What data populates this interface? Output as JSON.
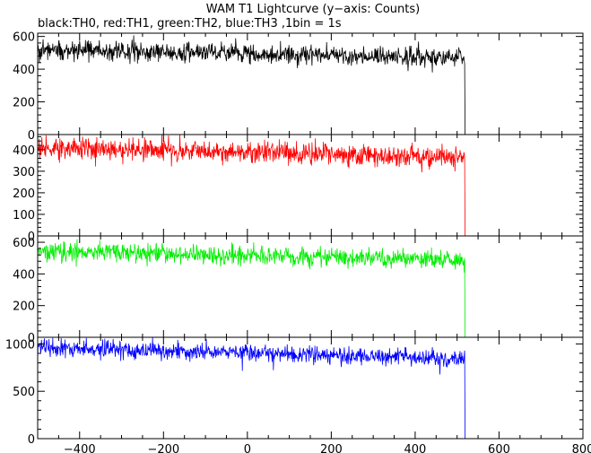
{
  "chart_data": {
    "type": "line",
    "title": "WAM T1 Lightcurve (y−axis: Counts)",
    "subtitle": "black:TH0, red:TH1, green:TH2, blue:TH3 ,1bin = 1s",
    "xlim": [
      -500,
      800
    ],
    "x_ticks": [
      -400,
      -200,
      0,
      200,
      400,
      600,
      800
    ],
    "bin_seconds": 1,
    "drop_time": 518,
    "panels": [
      {
        "name": "TH0",
        "color": "#000000",
        "ylim": [
          0,
          620
        ],
        "y_ticks": [
          0,
          200,
          400,
          600
        ],
        "level_start": 520,
        "level_end": 470,
        "noise": 60,
        "after_level": 0
      },
      {
        "name": "TH1",
        "color": "#ff0000",
        "ylim": [
          0,
          470
        ],
        "y_ticks": [
          0,
          100,
          200,
          300,
          400
        ],
        "level_start": 410,
        "level_end": 365,
        "noise": 50,
        "after_level": 0
      },
      {
        "name": "TH2",
        "color": "#00ee00",
        "ylim": [
          0,
          640
        ],
        "y_ticks": [
          0,
          200,
          400,
          600
        ],
        "level_start": 545,
        "level_end": 485,
        "noise": 60,
        "after_level": 0
      },
      {
        "name": "TH3",
        "color": "#0000ff",
        "ylim": [
          0,
          1070
        ],
        "y_ticks": [
          0,
          500,
          1000
        ],
        "level_start": 960,
        "level_end": 840,
        "noise": 90,
        "after_level": 0
      }
    ]
  }
}
